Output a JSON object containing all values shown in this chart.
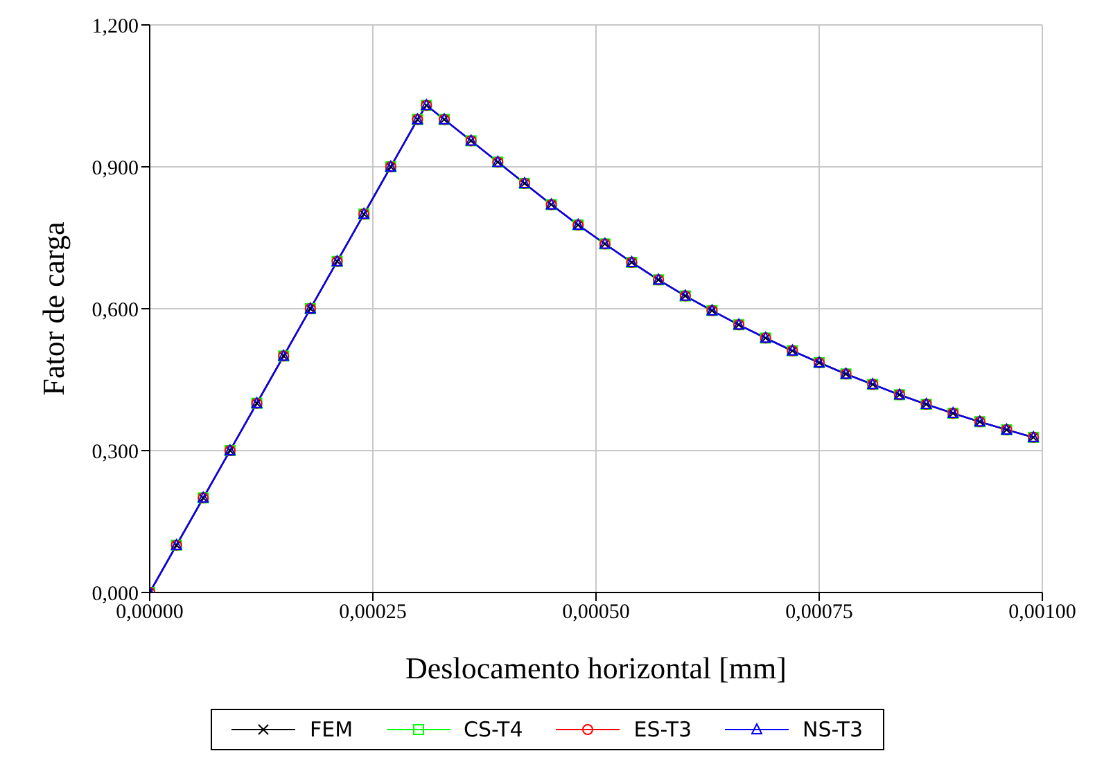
{
  "chart_data": {
    "type": "line",
    "xlabel": "Deslocamento horizontal [mm]",
    "ylabel": "Fator de carga",
    "x": [
      0,
      3e-05,
      6e-05,
      9e-05,
      0.00012,
      0.00015,
      0.00018,
      0.00021,
      0.00024,
      0.00027,
      0.0003,
      0.00031,
      0.00033,
      0.00036,
      0.00039,
      0.00042,
      0.00045,
      0.00048,
      0.00051,
      0.00054,
      0.00057,
      0.0006,
      0.00063,
      0.00066,
      0.00069,
      0.00072,
      0.00075,
      0.00078,
      0.00081,
      0.00084,
      0.00087,
      0.0009,
      0.00093,
      0.00096,
      0.00099
    ],
    "series": [
      {
        "name": "FEM",
        "color": "#000000",
        "marker": "cross",
        "values": [
          0,
          0.1,
          0.2,
          0.3,
          0.4,
          0.5,
          0.6,
          0.7,
          0.8,
          0.9,
          1.0,
          1.03,
          1.0,
          0.955,
          0.91,
          0.865,
          0.82,
          0.777,
          0.737,
          0.698,
          0.661,
          0.627,
          0.596,
          0.566,
          0.538,
          0.511,
          0.486,
          0.462,
          0.44,
          0.418,
          0.398,
          0.379,
          0.361,
          0.344,
          0.328
        ]
      },
      {
        "name": "CS-T4",
        "color": "#00ff00",
        "marker": "square",
        "values": [
          0,
          0.1,
          0.2,
          0.3,
          0.4,
          0.5,
          0.6,
          0.7,
          0.8,
          0.9,
          1.0,
          1.03,
          1.0,
          0.955,
          0.91,
          0.865,
          0.82,
          0.777,
          0.737,
          0.698,
          0.661,
          0.627,
          0.596,
          0.566,
          0.538,
          0.511,
          0.486,
          0.462,
          0.44,
          0.418,
          0.398,
          0.379,
          0.361,
          0.344,
          0.328
        ]
      },
      {
        "name": "ES-T3",
        "color": "#ff0000",
        "marker": "circle",
        "values": [
          0,
          0.1,
          0.2,
          0.3,
          0.4,
          0.5,
          0.6,
          0.7,
          0.8,
          0.9,
          1.0,
          1.03,
          1.0,
          0.955,
          0.91,
          0.865,
          0.82,
          0.777,
          0.737,
          0.698,
          0.661,
          0.627,
          0.596,
          0.566,
          0.538,
          0.511,
          0.486,
          0.462,
          0.44,
          0.418,
          0.398,
          0.379,
          0.361,
          0.344,
          0.328
        ]
      },
      {
        "name": "NS-T3",
        "color": "#0000ff",
        "marker": "triangle",
        "values": [
          0,
          0.1,
          0.2,
          0.3,
          0.4,
          0.5,
          0.6,
          0.7,
          0.8,
          0.9,
          1.0,
          1.03,
          1.0,
          0.955,
          0.91,
          0.865,
          0.82,
          0.777,
          0.737,
          0.698,
          0.661,
          0.627,
          0.596,
          0.566,
          0.538,
          0.511,
          0.486,
          0.462,
          0.44,
          0.418,
          0.398,
          0.379,
          0.361,
          0.344,
          0.328
        ]
      }
    ],
    "xlim": [
      0,
      0.001
    ],
    "xticks": [
      {
        "value": 0,
        "label": "0,00000"
      },
      {
        "value": 0.00025,
        "label": "0,00025"
      },
      {
        "value": 0.0005,
        "label": "0,00050"
      },
      {
        "value": 0.00075,
        "label": "0,00075"
      },
      {
        "value": 0.001,
        "label": "0,00100"
      }
    ],
    "ylim": [
      0,
      1.2
    ],
    "yticks": [
      {
        "value": 0,
        "label": "0,000"
      },
      {
        "value": 0.3,
        "label": "0,300"
      },
      {
        "value": 0.6,
        "label": "0,600"
      },
      {
        "value": 0.9,
        "label": "0,900"
      },
      {
        "value": 1.2,
        "label": "1,200"
      }
    ],
    "grid": true,
    "legend": "bottom",
    "line_style": "solid"
  }
}
